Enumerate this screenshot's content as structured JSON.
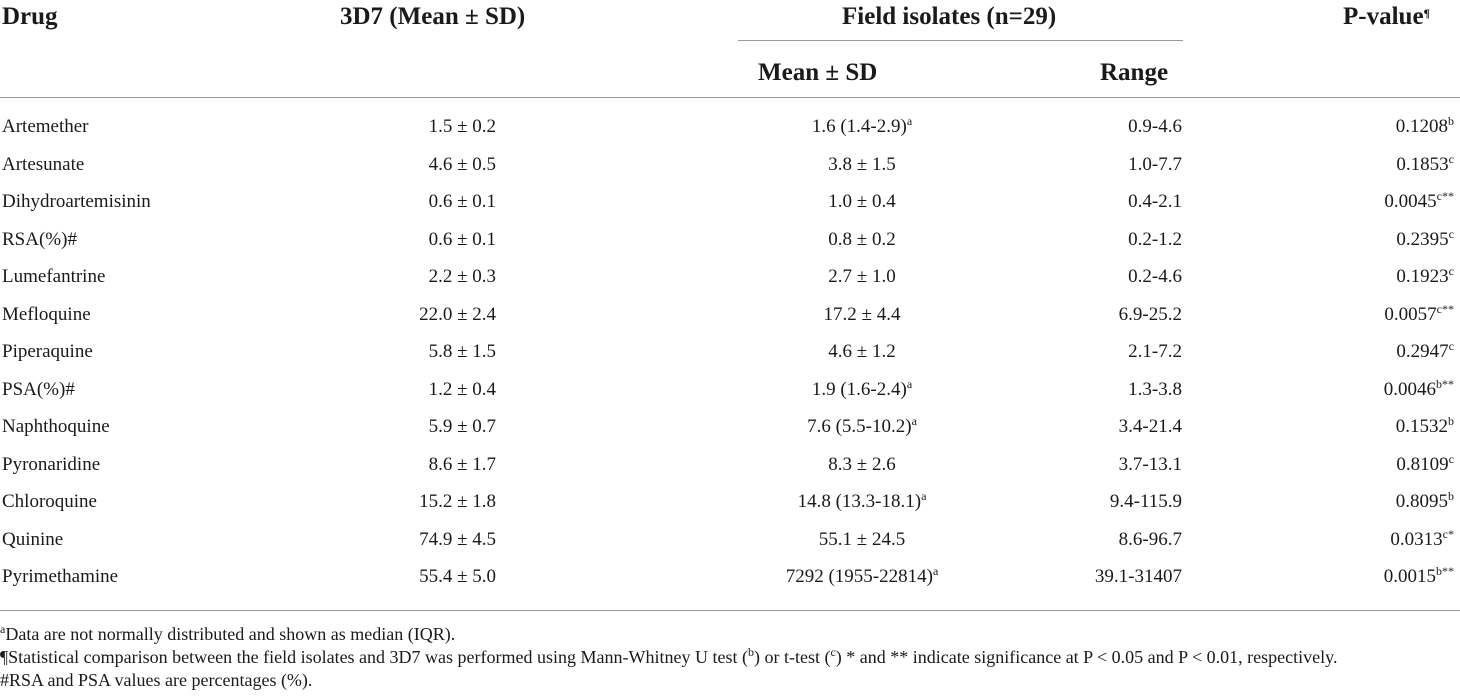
{
  "header": {
    "drug": "Drug",
    "strain_3d7": "3D7 (Mean ± SD)",
    "field_isolates": "Field isolates (n=29)",
    "mean_sd": "Mean ± SD",
    "range": "Range",
    "p_value": "P-value",
    "p_value_mark": "¶"
  },
  "rows": [
    {
      "drug": "Artemether",
      "d3d7": "1.5 ± 0.2",
      "mean": "1.6 (1.4-2.9)",
      "mean_sup": "a",
      "range": "0.9-4.6",
      "p": "0.1208",
      "p_sup": "b"
    },
    {
      "drug": "Artesunate",
      "d3d7": "4.6 ± 0.5",
      "mean": "3.8 ± 1.5",
      "mean_sup": "",
      "range": "1.0-7.7",
      "p": "0.1853",
      "p_sup": "c"
    },
    {
      "drug": "Dihydroartemisinin",
      "d3d7": "0.6 ± 0.1",
      "mean": "1.0 ± 0.4",
      "mean_sup": "",
      "range": "0.4-2.1",
      "p": "0.0045",
      "p_sup": "c**"
    },
    {
      "drug": "RSA(%)#",
      "d3d7": "0.6 ± 0.1",
      "mean": "0.8 ± 0.2",
      "mean_sup": "",
      "range": "0.2-1.2",
      "p": "0.2395",
      "p_sup": "c"
    },
    {
      "drug": "Lumefantrine",
      "d3d7": "2.2 ± 0.3",
      "mean": "2.7 ± 1.0",
      "mean_sup": "",
      "range": "0.2-4.6",
      "p": "0.1923",
      "p_sup": "c"
    },
    {
      "drug": "Mefloquine",
      "d3d7": "22.0 ± 2.4",
      "mean": "17.2 ± 4.4",
      "mean_sup": "",
      "range": "6.9-25.2",
      "p": "0.0057",
      "p_sup": "c**"
    },
    {
      "drug": "Piperaquine",
      "d3d7": "5.8 ± 1.5",
      "mean": "4.6 ± 1.2",
      "mean_sup": "",
      "range": "2.1-7.2",
      "p": "0.2947",
      "p_sup": "c"
    },
    {
      "drug": "PSA(%)#",
      "d3d7": "1.2 ± 0.4",
      "mean": "1.9 (1.6-2.4)",
      "mean_sup": "a",
      "range": "1.3-3.8",
      "p": "0.0046",
      "p_sup": "b**"
    },
    {
      "drug": "Naphthoquine",
      "d3d7": "5.9 ± 0.7",
      "mean": "7.6 (5.5-10.2)",
      "mean_sup": "a",
      "range": "3.4-21.4",
      "p": "0.1532",
      "p_sup": "b"
    },
    {
      "drug": "Pyronaridine",
      "d3d7": "8.6 ± 1.7",
      "mean": "8.3 ± 2.6",
      "mean_sup": "",
      "range": "3.7-13.1",
      "p": "0.8109",
      "p_sup": "c"
    },
    {
      "drug": "Chloroquine",
      "d3d7": "15.2 ± 1.8",
      "mean": "14.8 (13.3-18.1)",
      "mean_sup": "a",
      "range": "9.4-115.9",
      "p": "0.8095",
      "p_sup": "b"
    },
    {
      "drug": "Quinine",
      "d3d7": "74.9 ± 4.5",
      "mean": "55.1 ± 24.5",
      "mean_sup": "",
      "range": "8.6-96.7",
      "p": "0.0313",
      "p_sup": "c*"
    },
    {
      "drug": "Pyrimethamine",
      "d3d7": "55.4 ± 5.0",
      "mean": "7292 (1955-22814)",
      "mean_sup": "a",
      "range": "39.1-31407",
      "p": "0.0015",
      "p_sup": "b**"
    }
  ],
  "footnotes": {
    "a_mark": "a",
    "a_text": "Data are not normally distributed and shown as median (IQR).",
    "stat_1": "¶Statistical comparison between the field isolates and 3D7 was performed using Mann-Whitney U test (",
    "stat_b": "b",
    "stat_2": ") or t-test (",
    "stat_c": "c",
    "stat_3": ") * and ** indicate significance at P < 0.05 and P < 0.01, respectively.",
    "hash_text": "#RSA and PSA values are percentages (%)."
  }
}
